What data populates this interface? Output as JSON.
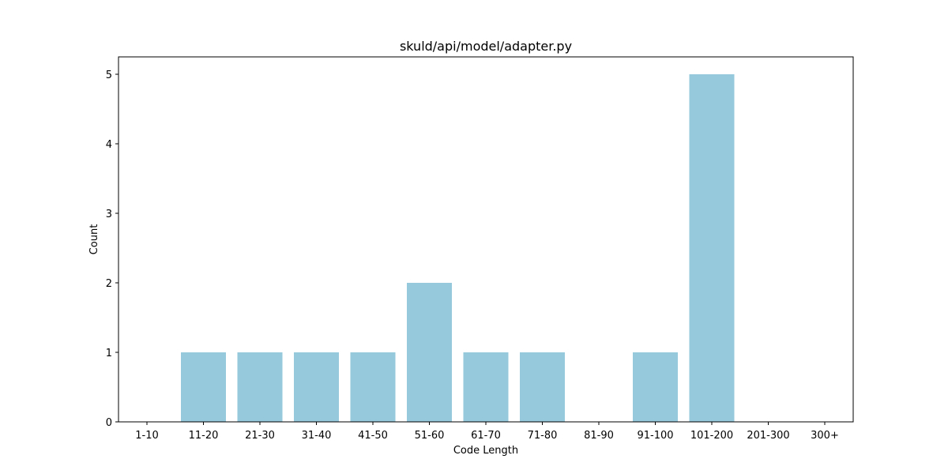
{
  "chart_data": {
    "type": "bar",
    "title": "skuld/api/model/adapter.py",
    "xlabel": "Code Length",
    "ylabel": "Count",
    "categories": [
      "1-10",
      "11-20",
      "21-30",
      "31-40",
      "41-50",
      "51-60",
      "61-70",
      "71-80",
      "81-90",
      "91-100",
      "101-200",
      "201-300",
      "300+"
    ],
    "values": [
      0,
      1,
      1,
      1,
      1,
      2,
      1,
      1,
      0,
      1,
      5,
      0,
      0
    ],
    "yticks": [
      0,
      1,
      2,
      3,
      4,
      5
    ],
    "ylim": [
      0,
      5.25
    ],
    "grid": false,
    "bar_color": "#96c9dc"
  }
}
